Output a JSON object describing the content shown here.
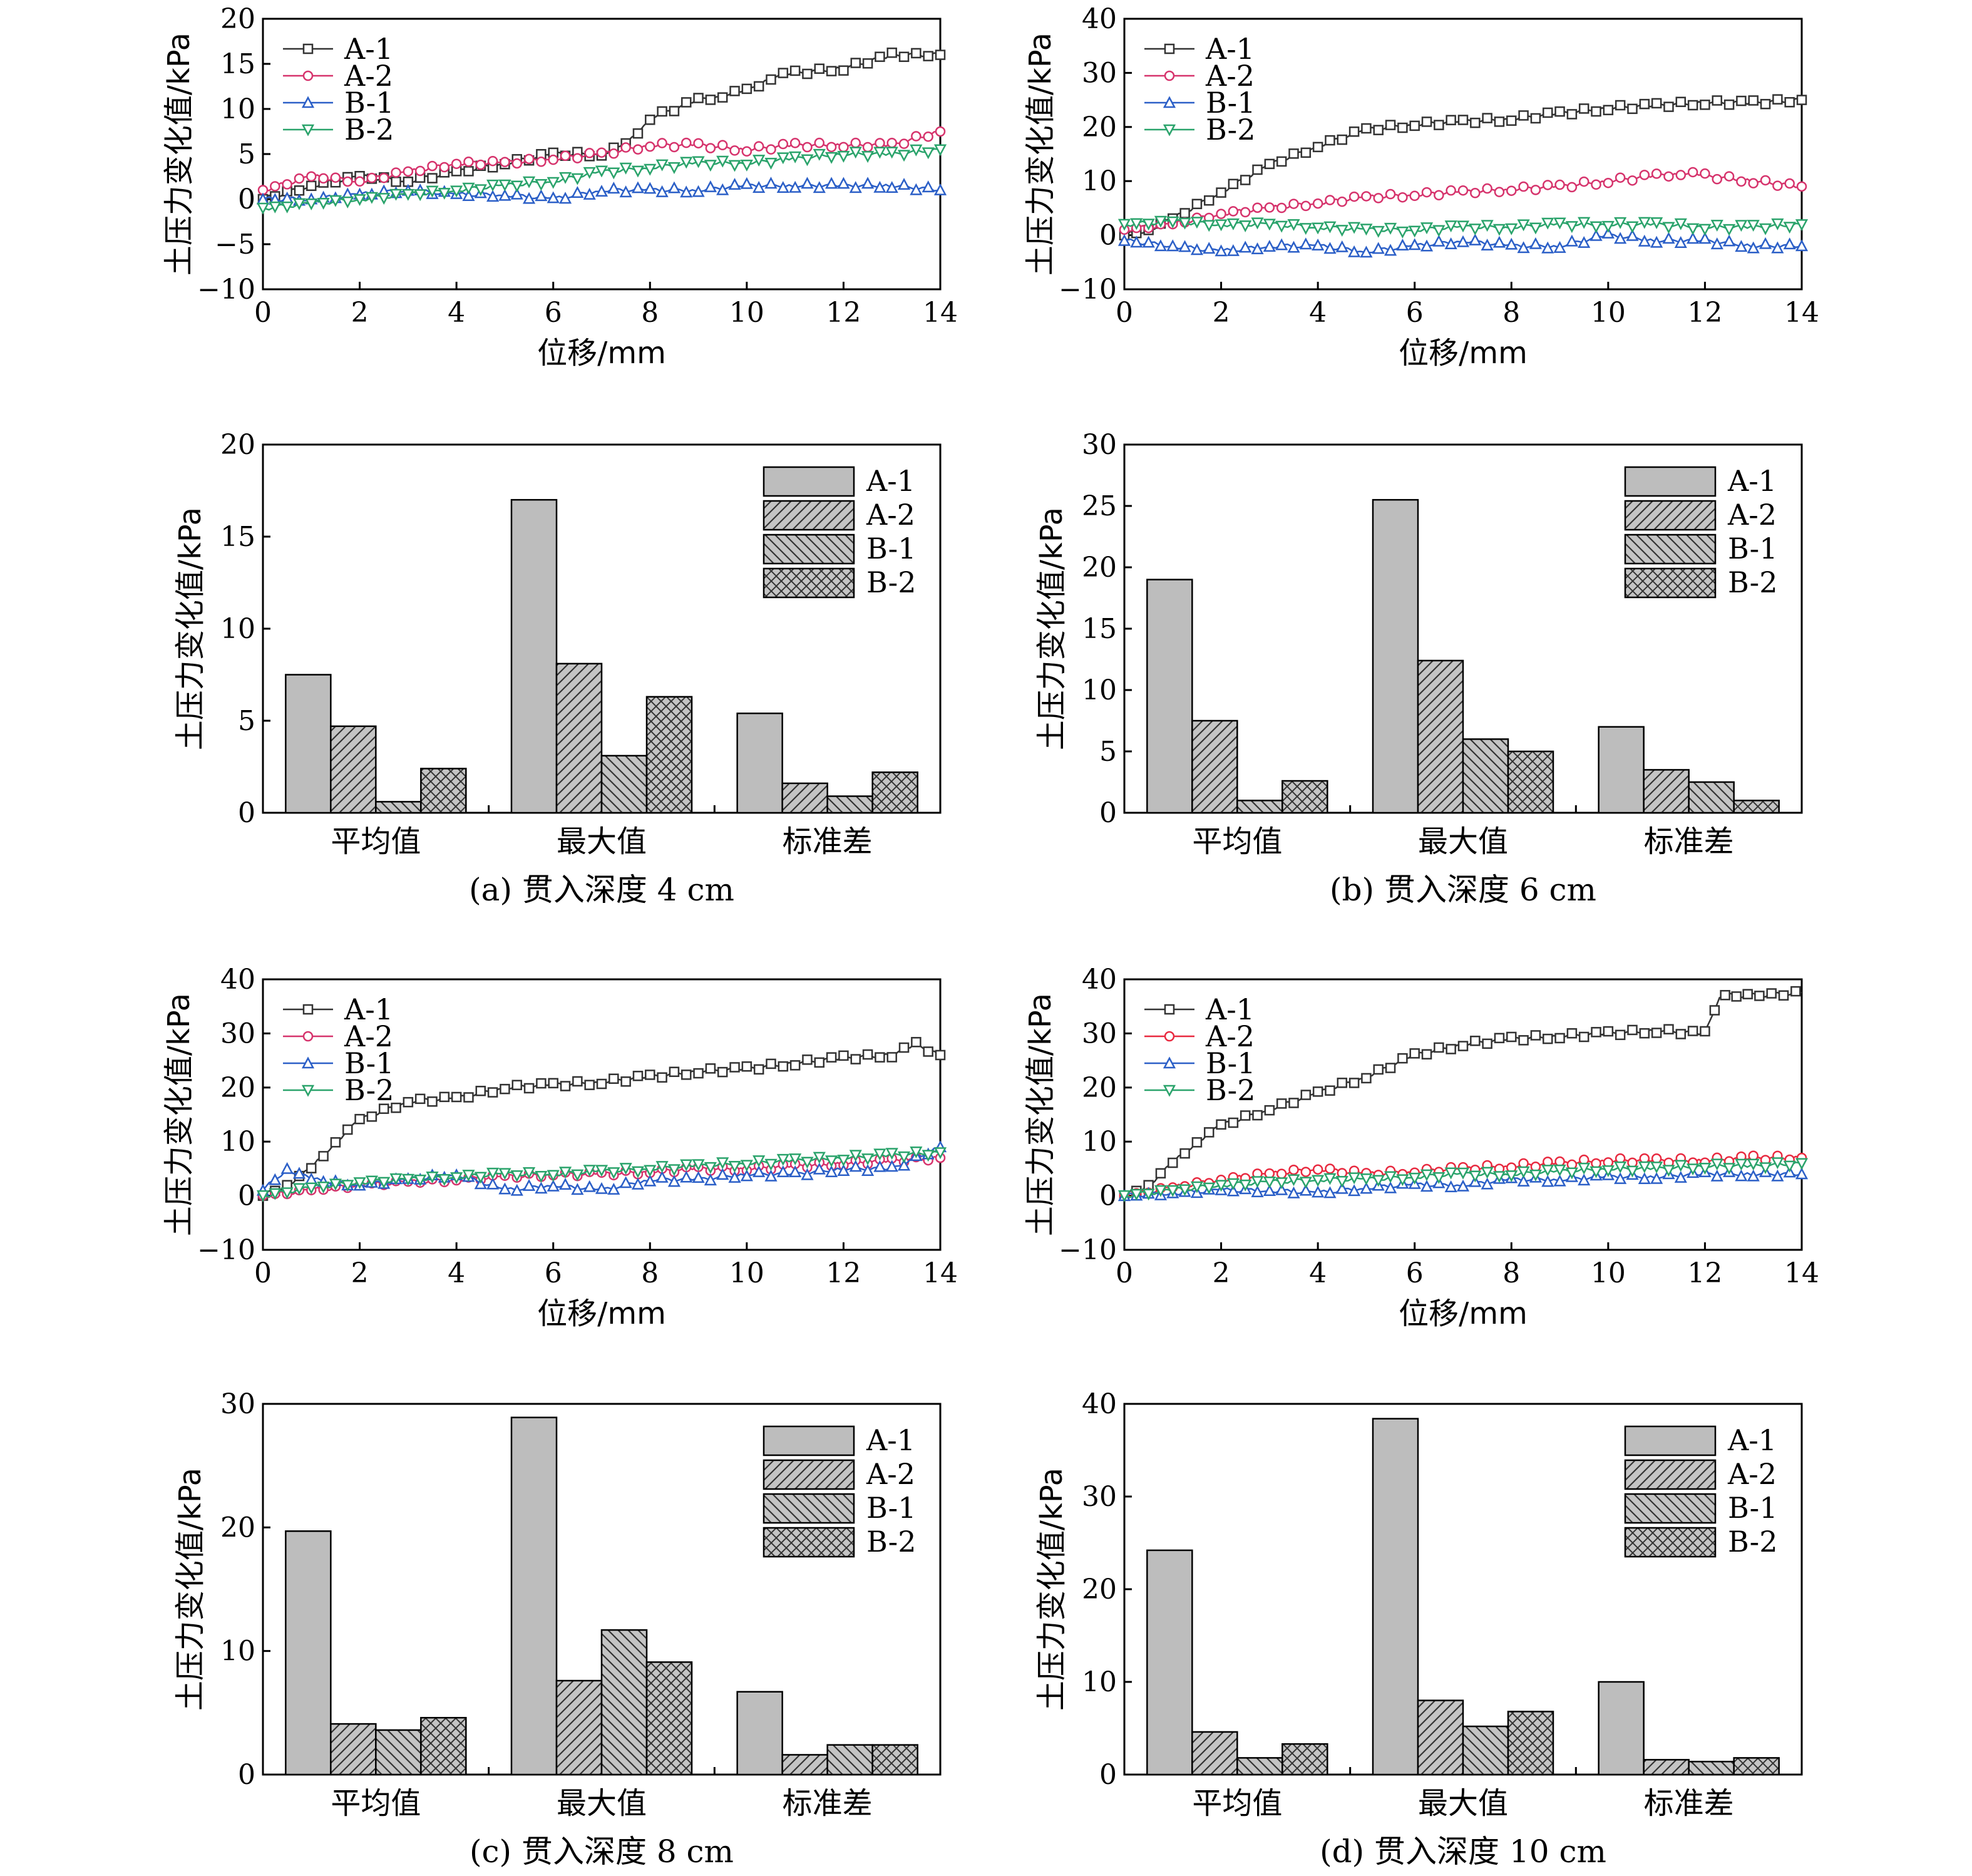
{
  "chart_data": [
    {
      "id": "a-line",
      "type": "line",
      "xlabel": "位移/mm",
      "ylabel": "土压力变化值/kPa",
      "xlim": [
        0,
        14
      ],
      "ylim": [
        -10,
        20
      ],
      "xticks": [
        "0",
        "2",
        "4",
        "6",
        "8",
        "10",
        "12",
        "14"
      ],
      "yticks": [
        "20",
        "15",
        "10",
        "5",
        "0",
        "−5",
        "−10"
      ],
      "legend": "top-left",
      "series": [
        {
          "name": "A-1",
          "color": "#333333",
          "marker": "square",
          "x": [
            0,
            1,
            2,
            3,
            4,
            5,
            6,
            7,
            7.5,
            8,
            9,
            9.5,
            10,
            10.5,
            11,
            12,
            13,
            14
          ],
          "y": [
            0,
            1.5,
            2.5,
            2,
            3,
            4,
            5,
            5,
            6,
            9,
            11,
            11.5,
            12,
            13.5,
            14,
            14.5,
            16,
            16
          ]
        },
        {
          "name": "A-2",
          "color": "#d6336c",
          "marker": "circle",
          "x": [
            0,
            1,
            2,
            3,
            4,
            5,
            6,
            7,
            8,
            9,
            10,
            11,
            12,
            13,
            14
          ],
          "y": [
            1,
            2.5,
            2,
            3,
            4,
            4,
            4.5,
            5,
            6,
            6,
            5.5,
            6,
            6,
            6,
            7.5
          ]
        },
        {
          "name": "B-1",
          "color": "#2b5fc7",
          "marker": "triangle-up",
          "x": [
            0,
            1,
            2,
            3,
            4,
            5,
            6,
            7,
            8,
            9,
            10,
            11,
            12,
            13,
            14
          ],
          "y": [
            0,
            0,
            0.5,
            1,
            0.5,
            0.5,
            0,
            1,
            1,
            1,
            1.5,
            1.5,
            1.5,
            1.5,
            1
          ]
        },
        {
          "name": "B-2",
          "color": "#2aa36b",
          "marker": "triangle-down",
          "x": [
            0,
            1,
            2,
            3,
            4,
            5,
            6,
            7,
            8,
            9,
            10,
            11,
            12,
            13,
            14
          ],
          "y": [
            -1,
            -0.5,
            0,
            0.5,
            1,
            1.5,
            2,
            3,
            3.5,
            4,
            4,
            4.5,
            5,
            5,
            5.5
          ]
        }
      ]
    },
    {
      "id": "b-line",
      "type": "line",
      "xlabel": "位移/mm",
      "ylabel": "土压力变化值/kPa",
      "xlim": [
        0,
        14
      ],
      "ylim": [
        -10,
        40
      ],
      "xticks": [
        "0",
        "2",
        "4",
        "6",
        "8",
        "10",
        "12",
        "14"
      ],
      "yticks": [
        "40",
        "30",
        "20",
        "10",
        "0",
        "−10"
      ],
      "legend": "top-left",
      "series": [
        {
          "name": "A-1",
          "color": "#333333",
          "marker": "square",
          "x": [
            0,
            0.5,
            1,
            2,
            3,
            4,
            5,
            6,
            7,
            8,
            9,
            10,
            11,
            12,
            13,
            14
          ],
          "y": [
            0,
            1,
            3,
            8,
            13,
            16.5,
            19.5,
            20.5,
            21,
            21.5,
            22.5,
            23.5,
            24,
            24.5,
            24.5,
            25
          ]
        },
        {
          "name": "A-2",
          "color": "#d6336c",
          "marker": "circle",
          "x": [
            0,
            1,
            2,
            3,
            4,
            5,
            6,
            7,
            8,
            9,
            10,
            11,
            11.5,
            12,
            13,
            14
          ],
          "y": [
            1,
            2,
            4,
            5,
            6,
            7,
            7.5,
            8,
            8.5,
            9,
            10,
            11,
            11.5,
            11,
            10,
            9
          ]
        },
        {
          "name": "B-1",
          "color": "#2b5fc7",
          "marker": "triangle-up",
          "x": [
            0,
            1,
            2,
            3,
            4,
            5,
            6,
            7,
            8,
            9,
            10,
            11,
            12,
            13,
            14
          ],
          "y": [
            -1,
            -2,
            -3,
            -2,
            -2,
            -3,
            -2,
            -1,
            -2,
            -2,
            0,
            -1,
            -1,
            -2,
            -2
          ]
        },
        {
          "name": "B-2",
          "color": "#2aa36b",
          "marker": "triangle-down",
          "x": [
            0,
            1,
            2,
            3,
            4,
            5,
            6,
            7,
            8,
            9,
            10,
            11,
            12,
            13,
            14
          ],
          "y": [
            2,
            2.5,
            2,
            2,
            1.5,
            1,
            1,
            1.5,
            1.5,
            2,
            2,
            2,
            1.5,
            1.5,
            2
          ]
        }
      ]
    },
    {
      "id": "a-bar",
      "type": "bar",
      "ylabel": "土压力变化值/kPa",
      "ylim": [
        0,
        20
      ],
      "yticks": [
        "20",
        "15",
        "10",
        "5",
        "0"
      ],
      "categories": [
        "平均值",
        "最大值",
        "标准差"
      ],
      "legend": "top-right",
      "caption": "(a) 贯入深度 4 cm",
      "series": [
        {
          "name": "A-1",
          "values": [
            7.5,
            17,
            5.4
          ]
        },
        {
          "name": "A-2",
          "values": [
            4.7,
            8.1,
            1.6
          ]
        },
        {
          "name": "B-1",
          "values": [
            0.6,
            3.1,
            0.9
          ]
        },
        {
          "name": "B-2",
          "values": [
            2.4,
            6.3,
            2.2
          ]
        }
      ]
    },
    {
      "id": "b-bar",
      "type": "bar",
      "ylabel": "土压力变化值/kPa",
      "ylim": [
        0,
        30
      ],
      "yticks": [
        "30",
        "25",
        "20",
        "15",
        "10",
        "5",
        "0"
      ],
      "categories": [
        "平均值",
        "最大值",
        "标准差"
      ],
      "legend": "top-right",
      "caption": "(b) 贯入深度 6 cm",
      "series": [
        {
          "name": "A-1",
          "values": [
            19,
            25.5,
            7
          ]
        },
        {
          "name": "A-2",
          "values": [
            7.5,
            12.4,
            3.5
          ]
        },
        {
          "name": "B-1",
          "values": [
            1,
            6,
            2.5
          ]
        },
        {
          "name": "B-2",
          "values": [
            2.6,
            5,
            1
          ]
        }
      ]
    },
    {
      "id": "c-line",
      "type": "line",
      "xlabel": "位移/mm",
      "ylabel": "土压力变化值/kPa",
      "xlim": [
        0,
        14
      ],
      "ylim": [
        -10,
        40
      ],
      "xticks": [
        "0",
        "2",
        "4",
        "6",
        "8",
        "10",
        "12",
        "14"
      ],
      "yticks": [
        "40",
        "30",
        "20",
        "10",
        "0",
        "−10"
      ],
      "legend": "top-left",
      "series": [
        {
          "name": "A-1",
          "color": "#333333",
          "marker": "square",
          "x": [
            0,
            0.5,
            1,
            1.5,
            2,
            3,
            4,
            5,
            6,
            7,
            8,
            9,
            10,
            11,
            12,
            13,
            13.5,
            14
          ],
          "y": [
            0,
            2,
            5,
            10,
            14,
            17.5,
            18,
            20,
            20.5,
            21,
            22,
            23,
            23.5,
            24.5,
            25.5,
            26,
            28,
            26
          ]
        },
        {
          "name": "A-2",
          "color": "#d6336c",
          "marker": "circle",
          "x": [
            0,
            1,
            2,
            3,
            4,
            5,
            6,
            7,
            8,
            9,
            10,
            11,
            12,
            13,
            14
          ],
          "y": [
            0,
            1,
            2,
            2.5,
            3,
            3.5,
            4,
            4,
            4.5,
            5,
            5,
            5.5,
            6,
            6.5,
            7
          ]
        },
        {
          "name": "B-1",
          "color": "#2b5fc7",
          "marker": "triangle-up",
          "x": [
            0,
            0.5,
            1,
            2,
            3,
            4,
            5,
            6,
            7,
            8,
            9,
            10,
            11,
            12,
            13,
            14
          ],
          "y": [
            1,
            5,
            3,
            2,
            3,
            4,
            1,
            2,
            1,
            3,
            3,
            4,
            4,
            5,
            5,
            9
          ]
        },
        {
          "name": "B-2",
          "color": "#2aa36b",
          "marker": "triangle-down",
          "x": [
            0,
            1,
            2,
            3,
            4,
            5,
            6,
            7,
            8,
            9,
            10,
            11,
            12,
            13,
            14
          ],
          "y": [
            0,
            1.5,
            2.5,
            3,
            3.5,
            4,
            4,
            4.5,
            5,
            5.5,
            6,
            6.5,
            7,
            7.5,
            8
          ]
        }
      ]
    },
    {
      "id": "d-line",
      "type": "line",
      "xlabel": "位移/mm",
      "ylabel": "土压力变化值/kPa",
      "xlim": [
        0,
        14
      ],
      "ylim": [
        -10,
        40
      ],
      "xticks": [
        "0",
        "2",
        "4",
        "6",
        "8",
        "10",
        "12",
        "14"
      ],
      "yticks": [
        "40",
        "30",
        "20",
        "10",
        "0",
        "−10"
      ],
      "legend": "top-left",
      "series": [
        {
          "name": "A-1",
          "color": "#333333",
          "marker": "square",
          "x": [
            0,
            0.5,
            1,
            1.5,
            2,
            3,
            4,
            5,
            6,
            7,
            8,
            9,
            10,
            11,
            12,
            12.3,
            13,
            14
          ],
          "y": [
            0,
            2,
            6,
            10,
            13,
            16,
            19,
            22,
            26,
            28,
            29,
            29.5,
            30,
            30.5,
            30,
            37,
            37,
            37.5
          ]
        },
        {
          "name": "A-2",
          "color": "#e8293f",
          "marker": "circle",
          "x": [
            0,
            1,
            2,
            3,
            4,
            5,
            6,
            7,
            8,
            9,
            10,
            11,
            12,
            13,
            14
          ],
          "y": [
            0,
            1.5,
            3,
            4,
            5,
            4,
            4.5,
            5,
            5.5,
            6,
            6.5,
            6.5,
            6.5,
            7,
            7
          ]
        },
        {
          "name": "B-1",
          "color": "#2b5fc7",
          "marker": "triangle-up",
          "x": [
            0,
            1,
            2,
            3,
            4,
            5,
            6,
            7,
            8,
            9,
            10,
            11,
            12,
            13,
            14
          ],
          "y": [
            0,
            0.5,
            1,
            1,
            0.5,
            1.5,
            2,
            2,
            3,
            3,
            3.5,
            3.5,
            4,
            4,
            4
          ]
        },
        {
          "name": "B-2",
          "color": "#2aa36b",
          "marker": "triangle-down",
          "x": [
            0,
            1,
            2,
            3,
            4,
            5,
            6,
            7,
            8,
            9,
            10,
            11,
            12,
            13,
            14
          ],
          "y": [
            0,
            1,
            2,
            2.5,
            3,
            3,
            3.5,
            4,
            4,
            4.5,
            5,
            5,
            5.5,
            5.5,
            6
          ]
        }
      ]
    },
    {
      "id": "c-bar",
      "type": "bar",
      "ylabel": "土压力变化值/kPa",
      "ylim": [
        0,
        30
      ],
      "yticks": [
        "30",
        "20",
        "10",
        "0"
      ],
      "categories": [
        "平均值",
        "最大值",
        "标准差"
      ],
      "legend": "top-right",
      "caption": "(c) 贯入深度 8 cm",
      "series": [
        {
          "name": "A-1",
          "values": [
            19.7,
            28.9,
            6.7
          ]
        },
        {
          "name": "A-2",
          "values": [
            4.1,
            7.6,
            1.6
          ]
        },
        {
          "name": "B-1",
          "values": [
            3.6,
            11.7,
            2.4
          ]
        },
        {
          "name": "B-2",
          "values": [
            4.6,
            9.1,
            2.4
          ]
        }
      ]
    },
    {
      "id": "d-bar",
      "type": "bar",
      "ylabel": "土压力变化值/kPa",
      "ylim": [
        0,
        40
      ],
      "yticks": [
        "40",
        "30",
        "20",
        "10",
        "0"
      ],
      "categories": [
        "平均值",
        "最大值",
        "标准差"
      ],
      "legend": "top-right",
      "caption": "(d) 贯入深度 10 cm",
      "series": [
        {
          "name": "A-1",
          "values": [
            24.2,
            38.4,
            10
          ]
        },
        {
          "name": "A-2",
          "values": [
            4.6,
            8,
            1.6
          ]
        },
        {
          "name": "B-1",
          "values": [
            1.8,
            5.2,
            1.4
          ]
        },
        {
          "name": "B-2",
          "values": [
            3.3,
            6.8,
            1.8
          ]
        }
      ]
    }
  ],
  "bar_style": {
    "A-1": {
      "fill": "#bdbdbd",
      "pattern": "none"
    },
    "A-2": {
      "fill": "#bdbdbd",
      "pattern": "diagonal-up"
    },
    "B-1": {
      "fill": "#bdbdbd",
      "pattern": "diagonal-down"
    },
    "B-2": {
      "fill": "#bdbdbd",
      "pattern": "crosshatch"
    }
  }
}
